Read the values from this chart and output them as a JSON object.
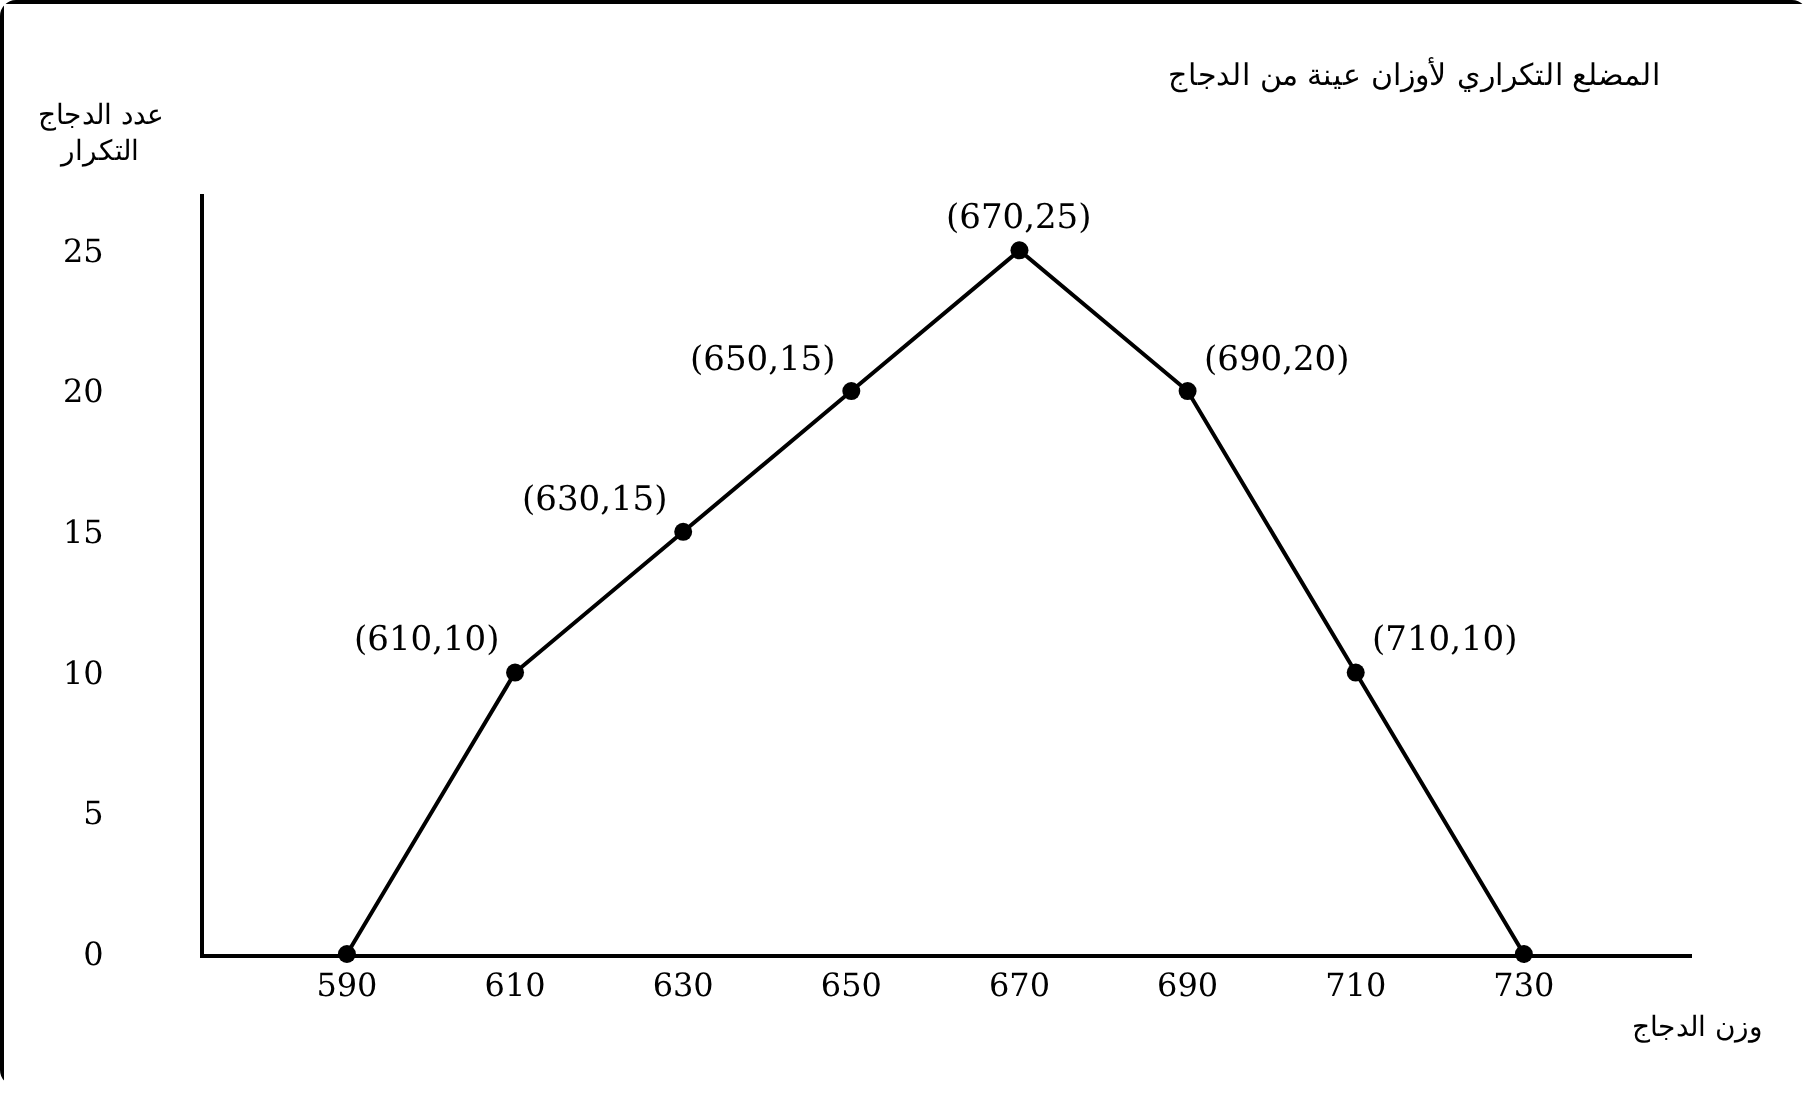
{
  "chart_data": {
    "type": "line",
    "title": "المضلع التكراري لأوزان عينة من الدجاج",
    "xlabel": "وزن الدجاج",
    "ylabel": "عدد الدجاج\nالتكرار",
    "x": [
      590,
      610,
      630,
      650,
      670,
      690,
      710,
      730
    ],
    "series": [
      {
        "color": "#000000",
        "values": [
          0,
          10,
          15,
          20,
          25,
          20,
          10,
          0
        ]
      }
    ],
    "xlim": [
      573,
      750
    ],
    "xticks": [
      590,
      610,
      630,
      650,
      670,
      690,
      710,
      730
    ],
    "ylim": [
      0,
      27
    ],
    "yticks": [
      0,
      5,
      10,
      15,
      20,
      25
    ],
    "grid": false,
    "marker": "circle",
    "line_style": "solid",
    "annotations": [
      {
        "text": "(610,10)",
        "x": 610,
        "y": 10
      },
      {
        "text": "(630,15)",
        "x": 630,
        "y": 15
      },
      {
        "text": "(650,15)",
        "x": 650,
        "y": 20
      },
      {
        "text": "(670,25)",
        "x": 670,
        "y": 25
      },
      {
        "text": "(690,20)",
        "x": 690,
        "y": 20
      },
      {
        "text": "(710,10)",
        "x": 710,
        "y": 10
      }
    ]
  }
}
